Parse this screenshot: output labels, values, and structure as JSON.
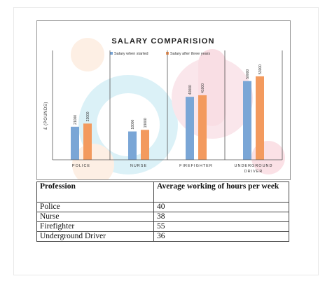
{
  "chart_data": {
    "type": "bar",
    "title": "SALARY COMPARISION",
    "ylabel": "£ (POUNDS)",
    "xlabel": "",
    "categories": [
      "POLICE",
      "NURSE",
      "FIREFIGHTER",
      "UNDERGROUND DRIVER"
    ],
    "series": [
      {
        "name": "Salary when started",
        "values": [
          21000,
          18000,
          40000,
          50000
        ],
        "color": "#7aa6d6"
      },
      {
        "name": "Salary after three years",
        "values": [
          23000,
          19000,
          41000,
          53000
        ],
        "color": "#f39a5e"
      }
    ],
    "value_labels": [
      [
        "21000",
        "18000",
        "40000",
        "50000"
      ],
      [
        "23000",
        "19000",
        "41000",
        "53000"
      ]
    ],
    "ylim": [
      0,
      65000
    ],
    "grid": false,
    "legend_position": "top"
  },
  "table": {
    "headers": [
      "Profession",
      "Average working of hours per week"
    ],
    "header_parts": {
      "normal": "Average working ",
      "bold": "of hours per",
      "tail": " week"
    },
    "rows": [
      [
        "Police",
        "40"
      ],
      [
        "Nurse",
        "38"
      ],
      [
        "Firefighter",
        "55"
      ],
      [
        "Underground Driver",
        "36"
      ]
    ]
  },
  "colors": {
    "started": "#7aa6d6",
    "after": "#f39a5e",
    "watermark_pink": "#f7c9d2",
    "watermark_blue": "#bfe6f2",
    "watermark_peach": "#fde3cf"
  }
}
